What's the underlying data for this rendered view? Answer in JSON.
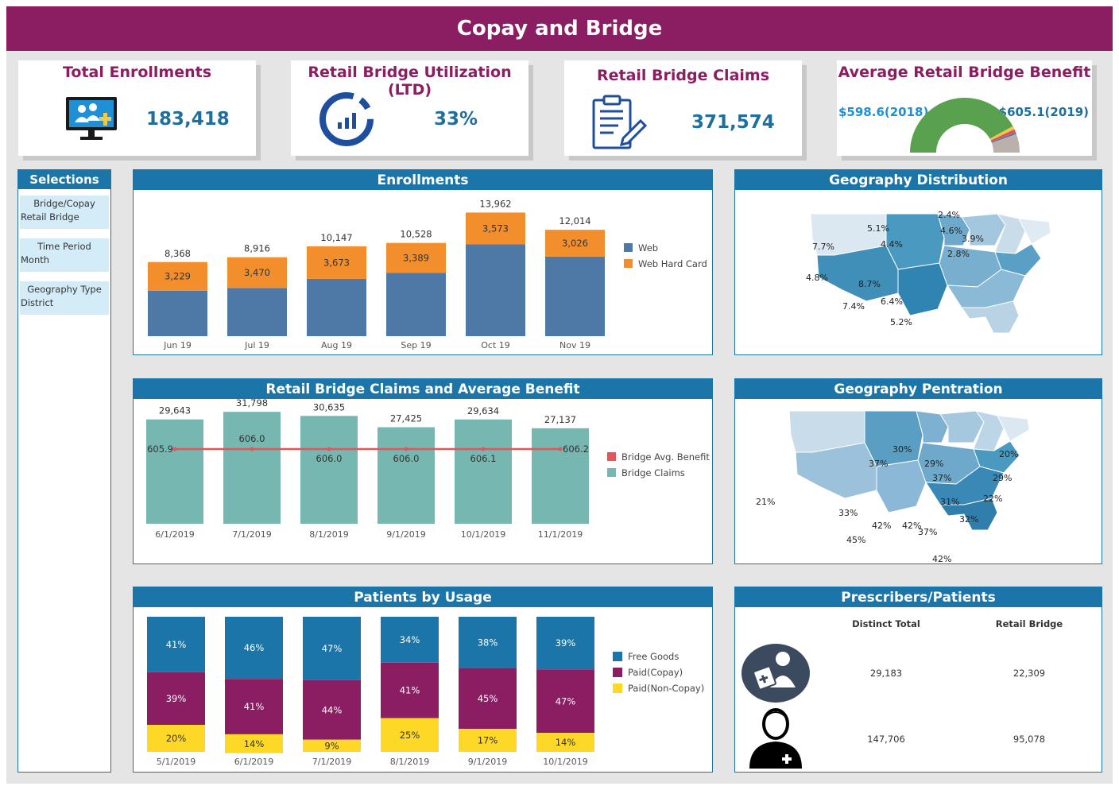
{
  "header": {
    "title": "Copay and Bridge"
  },
  "kpis": {
    "total_enrollments": {
      "title": "Total Enrollments",
      "value": "183,418"
    },
    "utilization": {
      "title": "Retail Bridge Utilization (LTD)",
      "value": "33%"
    },
    "claims": {
      "title": "Retail Bridge Claims",
      "value": "371,574"
    },
    "avg_benefit": {
      "title": "Average Retail Bridge Benefit",
      "left_label": "$598.6(2018)",
      "right_label": "$605.1(2019)"
    }
  },
  "selections": {
    "title": "Selections",
    "items": [
      {
        "label": "Bridge/Copay",
        "value": "Retail Bridge"
      },
      {
        "label": "Time Period",
        "value": "Month"
      },
      {
        "label": "Geography Type",
        "value": "District"
      }
    ]
  },
  "panels": {
    "enrollments": "Enrollments",
    "claims": "Retail Bridge Claims and Average Benefit",
    "usage": "Patients by Usage",
    "geo_dist": "Geography Distribution",
    "geo_pen": "Geography Pentration",
    "prescribers": "Prescribers/Patients"
  },
  "colors": {
    "brand": "#8b1e63",
    "panel_header": "#1b75a8",
    "web": "#4e79a7",
    "web_hard_card": "#f28e2b",
    "claims": "#76b7b2",
    "benefit": "#e15759",
    "free_goods": "#1b75a8",
    "paid_copay": "#8b1e63",
    "paid_noncopay": "#fdd827"
  },
  "chart_data": [
    {
      "id": "enrollments",
      "type": "bar",
      "stacked": true,
      "categories": [
        "Jun 19",
        "Jul 19",
        "Aug 19",
        "Sep 19",
        "Oct 19",
        "Nov 19"
      ],
      "series": [
        {
          "name": "Web",
          "values": [
            5139,
            5446,
            6474,
            7139,
            10389,
            8988
          ]
        },
        {
          "name": "Web Hard Card",
          "values": [
            3229,
            3470,
            3673,
            3389,
            3573,
            3026
          ]
        }
      ],
      "totals": [
        8368,
        8916,
        10147,
        10528,
        13962,
        12014
      ],
      "total_labels": [
        "8,368",
        "8,916",
        "10,147",
        "10,528",
        "13,962",
        "12,014"
      ],
      "segment_labels": [
        "3,229",
        "3,470",
        "3,673",
        "3,389",
        "3,573",
        "3,026"
      ],
      "legend_position": "right"
    },
    {
      "id": "claims",
      "type": "bar",
      "categories": [
        "6/1/2019",
        "7/1/2019",
        "8/1/2019",
        "9/1/2019",
        "10/1/2019",
        "11/1/2019"
      ],
      "series": [
        {
          "name": "Bridge Claims",
          "values": [
            29643,
            31798,
            30635,
            27425,
            29634,
            27137
          ]
        },
        {
          "name": "Bridge Avg. Benefit",
          "type": "line",
          "values": [
            605.9,
            606.0,
            606.0,
            606.0,
            606.1,
            606.2
          ]
        }
      ],
      "bar_labels": [
        "29,643",
        "31,798",
        "30,635",
        "27,425",
        "29,634",
        "27,137"
      ],
      "line_labels": [
        "605.9",
        "606.0",
        "606.0",
        "606.0",
        "606.1",
        "606.2"
      ],
      "legend_position": "right"
    },
    {
      "id": "usage",
      "type": "bar",
      "stacked": true,
      "percent": true,
      "categories": [
        "5/1/2019",
        "6/1/2019",
        "7/1/2019",
        "8/1/2019",
        "9/1/2019",
        "10/1/2019"
      ],
      "series": [
        {
          "name": "Free Goods",
          "values": [
            41,
            46,
            47,
            34,
            38,
            39
          ]
        },
        {
          "name": "Paid(Copay)",
          "values": [
            39,
            41,
            44,
            41,
            45,
            47
          ]
        },
        {
          "name": "Paid(Non-Copay)",
          "values": [
            20,
            14,
            9,
            25,
            17,
            14
          ]
        }
      ],
      "legend_position": "right"
    },
    {
      "id": "gauge",
      "type": "pie",
      "shape": "half-donut",
      "slices": [
        {
          "value": 84,
          "color": "#59a14f"
        },
        {
          "value": 2,
          "color": "#edc948"
        },
        {
          "value": 2,
          "color": "#e15759"
        },
        {
          "value": 1,
          "color": "#4e79a7"
        },
        {
          "value": 11,
          "color": "#bab0ac"
        }
      ]
    }
  ],
  "maps": {
    "distribution_labels": [
      "5.1%",
      "7.7%",
      "2.4%",
      "4.6%",
      "2.8%",
      "3.9%",
      "4.4%",
      "4.8%",
      "8.7%",
      "7.4%",
      "6.4%",
      "5.2%"
    ],
    "penetration_labels": [
      "30%",
      "37%",
      "29%",
      "37%",
      "20%",
      "29%",
      "22%",
      "31%",
      "21%",
      "33%",
      "32%",
      "42%",
      "42%",
      "37%",
      "45%",
      "42%"
    ]
  },
  "prescribers_table": {
    "col1": "Distinct Total",
    "col2": "Retail Bridge",
    "rows": [
      {
        "icon": "prescriber-icon",
        "total": "29,183",
        "bridge": "22,309"
      },
      {
        "icon": "patient-icon",
        "total": "147,706",
        "bridge": "95,078"
      }
    ]
  }
}
